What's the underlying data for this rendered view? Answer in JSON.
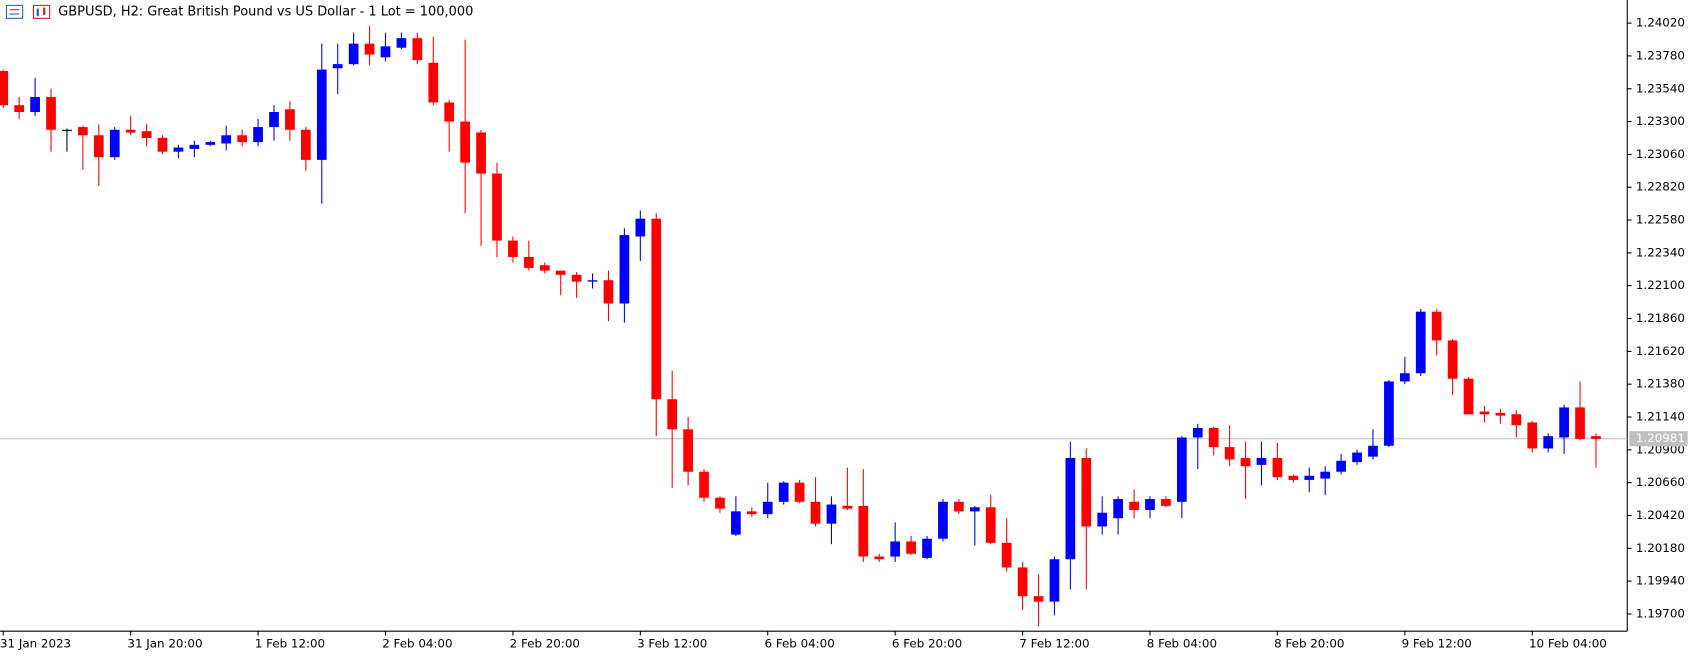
{
  "chart_data": {
    "type": "candlestick",
    "title": "GBPUSD, H2:  Great British Pound vs US Dollar - 1 Lot = 100,000",
    "categories": [
      "31 Jan 2023",
      null,
      null,
      null,
      null,
      null,
      null,
      null,
      "31 Jan 20:00",
      null,
      null,
      null,
      null,
      null,
      null,
      null,
      "1 Feb 12:00",
      null,
      null,
      null,
      null,
      null,
      null,
      null,
      "2 Feb 04:00",
      null,
      null,
      null,
      null,
      null,
      null,
      null,
      "2 Feb 20:00",
      null,
      null,
      null,
      null,
      null,
      null,
      null,
      "3 Feb 12:00",
      null,
      null,
      null,
      null,
      null,
      null,
      null,
      "6 Feb 04:00",
      null,
      null,
      null,
      null,
      null,
      null,
      null,
      "6 Feb 20:00",
      null,
      null,
      null,
      null,
      null,
      null,
      null,
      "7 Feb 12:00",
      null,
      null,
      null,
      null,
      null,
      null,
      null,
      "8 Feb 04:00",
      null,
      null,
      null,
      null,
      null,
      null,
      null,
      "8 Feb 20:00",
      null,
      null,
      null,
      null,
      null,
      null,
      null,
      "9 Feb 12:00",
      null,
      null,
      null,
      null,
      null,
      null,
      null,
      "10 Feb 04:00",
      null,
      null,
      null,
      null
    ],
    "open": [
      1.2367,
      1.2342,
      1.2337,
      1.2348,
      1.2324,
      1.2326,
      1.232,
      1.2304,
      1.2324,
      1.2323,
      1.2318,
      1.2308,
      1.231,
      1.2313,
      1.2314,
      1.232,
      1.2315,
      1.2326,
      1.2339,
      1.2324,
      1.2302,
      1.2369,
      1.2372,
      1.2387,
      1.2377,
      1.2384,
      1.2391,
      1.2373,
      1.2344,
      1.233,
      1.2322,
      1.2292,
      1.2243,
      1.2231,
      1.2225,
      1.2221,
      1.2218,
      1.2213,
      1.2214,
      1.2197,
      1.2246,
      1.2259,
      1.2127,
      1.2105,
      1.2074,
      1.2055,
      1.2028,
      1.2045,
      1.2043,
      1.2052,
      1.2066,
      1.2052,
      1.2036,
      1.2049,
      1.2049,
      1.2012,
      1.2012,
      1.2023,
      1.2011,
      1.2025,
      1.2052,
      1.2045,
      1.2048,
      1.2022,
      1.2004,
      1.1983,
      1.1979,
      1.201,
      1.2084,
      1.2034,
      1.204,
      1.2052,
      1.2046,
      1.2054,
      1.2052,
      1.2099,
      1.2106,
      1.2092,
      1.2084,
      1.2079,
      1.2084,
      1.2071,
      1.2068,
      1.2069,
      1.2074,
      1.2081,
      1.2085,
      1.2093,
      1.214,
      1.2146,
      1.2191,
      1.217,
      1.2142,
      1.2118,
      1.2117,
      1.2116,
      1.211,
      1.2091,
      1.2099,
      1.2121,
      1.21
    ],
    "high": [
      1.2368,
      1.2348,
      1.2362,
      1.2354,
      1.2325,
      1.2327,
      1.2328,
      1.2326,
      1.2334,
      1.2328,
      1.232,
      1.2313,
      1.2316,
      1.2316,
      1.2327,
      1.2324,
      1.2332,
      1.2342,
      1.2345,
      1.2326,
      1.2387,
      1.2387,
      1.2395,
      1.24,
      1.2395,
      1.2395,
      1.2395,
      1.2392,
      1.2346,
      1.239,
      1.2324,
      1.23,
      1.2246,
      1.2243,
      1.2227,
      1.2221,
      1.222,
      1.2219,
      1.2221,
      1.2252,
      1.2265,
      1.2263,
      1.2148,
      1.2114,
      1.2076,
      1.2056,
      1.2056,
      1.2048,
      1.2066,
      1.2067,
      1.2068,
      1.207,
      1.2056,
      1.2077,
      1.2076,
      1.2014,
      1.2037,
      1.2027,
      1.2027,
      1.2054,
      1.2054,
      1.2049,
      1.2057,
      1.204,
      1.2008,
      1.1999,
      1.2012,
      1.2096,
      1.2091,
      1.2056,
      1.2056,
      1.2061,
      1.2056,
      1.2056,
      1.21,
      1.2109,
      1.2107,
      1.2108,
      1.2096,
      1.2096,
      1.2095,
      1.2072,
      1.2077,
      1.2078,
      1.2087,
      1.209,
      1.2105,
      1.2141,
      1.2158,
      1.2193,
      1.2193,
      1.2171,
      1.2143,
      1.2122,
      1.212,
      1.2119,
      1.2111,
      1.2102,
      1.2123,
      1.214,
      1.2102
    ],
    "low": [
      1.234,
      1.2332,
      1.2334,
      1.2308,
      1.2308,
      1.2295,
      1.2283,
      1.2302,
      1.232,
      1.2312,
      1.2306,
      1.2303,
      1.2304,
      1.2312,
      1.2309,
      1.2312,
      1.2312,
      1.2316,
      1.2316,
      1.2294,
      1.227,
      1.235,
      1.2371,
      1.2371,
      1.2374,
      1.2383,
      1.2372,
      1.2342,
      1.2308,
      1.2263,
      1.2239,
      1.2231,
      1.2227,
      1.2221,
      1.2219,
      1.2203,
      1.2201,
      1.2208,
      1.2184,
      1.2183,
      1.2228,
      1.21,
      1.2062,
      1.2064,
      1.2052,
      1.2044,
      1.2027,
      1.2041,
      1.204,
      1.205,
      1.2051,
      1.2034,
      1.2021,
      1.2046,
      1.2008,
      1.2008,
      1.2008,
      1.2013,
      1.201,
      1.2023,
      1.2043,
      1.202,
      1.2021,
      1.2001,
      1.1973,
      1.1961,
      1.1969,
      1.1988,
      1.1988,
      1.2028,
      1.2028,
      1.204,
      1.204,
      1.2048,
      1.204,
      1.2076,
      1.2086,
      1.2078,
      1.2054,
      1.2064,
      1.2068,
      1.2066,
      1.2059,
      1.2057,
      1.2072,
      1.2079,
      1.2083,
      1.2092,
      1.2138,
      1.2144,
      1.2159,
      1.213,
      1.2116,
      1.211,
      1.2109,
      1.2099,
      1.2088,
      1.2088,
      1.2087,
      1.2097,
      1.2077
    ],
    "close": [
      1.2342,
      1.2337,
      1.2348,
      1.2324,
      1.2324,
      1.232,
      1.2304,
      1.2324,
      1.2322,
      1.2318,
      1.2308,
      1.2311,
      1.2313,
      1.2315,
      1.232,
      1.2315,
      1.2326,
      1.2337,
      1.2324,
      1.2302,
      1.2368,
      1.2372,
      1.2387,
      1.2379,
      1.2385,
      1.2391,
      1.2375,
      1.2344,
      1.233,
      1.23,
      1.2292,
      1.2243,
      1.2231,
      1.2223,
      1.2221,
      1.2218,
      1.2213,
      1.2214,
      1.2197,
      1.2247,
      1.2259,
      1.2127,
      1.2105,
      1.2074,
      1.2055,
      1.2047,
      1.2045,
      1.2043,
      1.2052,
      1.2066,
      1.2052,
      1.2036,
      1.205,
      1.2047,
      1.2012,
      1.201,
      1.2023,
      1.2014,
      1.2025,
      1.2052,
      1.2045,
      1.2048,
      1.2022,
      1.2004,
      1.1983,
      1.1979,
      1.201,
      1.2084,
      1.2034,
      1.2044,
      1.2054,
      1.2046,
      1.2054,
      1.2049,
      1.2099,
      1.2106,
      1.2092,
      1.2083,
      1.2078,
      1.2084,
      1.207,
      1.2068,
      1.2071,
      1.2074,
      1.2082,
      1.2088,
      1.2093,
      1.214,
      1.2146,
      1.2191,
      1.217,
      1.2142,
      1.2116,
      1.2116,
      1.2115,
      1.2108,
      1.2091,
      1.21,
      1.2121,
      1.2098,
      1.2098
    ],
    "up_color": "#0000ff",
    "down_color": "#ff0000",
    "current_price": 1.20981,
    "ylim": [
      1.19574,
      1.24189
    ],
    "yticks": [
      {
        "value": 1.2402,
        "label": "1.24020"
      },
      {
        "value": 1.2378,
        "label": "1.23780"
      },
      {
        "value": 1.2354,
        "label": "1.23540"
      },
      {
        "value": 1.233,
        "label": "1.23300"
      },
      {
        "value": 1.2306,
        "label": "1.23060"
      },
      {
        "value": 1.2282,
        "label": "1.22820"
      },
      {
        "value": 1.2258,
        "label": "1.22580"
      },
      {
        "value": 1.2234,
        "label": "1.22340"
      },
      {
        "value": 1.221,
        "label": "1.22100"
      },
      {
        "value": 1.2186,
        "label": "1.21860"
      },
      {
        "value": 1.2162,
        "label": "1.21620"
      },
      {
        "value": 1.2138,
        "label": "1.21380"
      },
      {
        "value": 1.2114,
        "label": "1.21140"
      },
      {
        "value": 1.209,
        "label": "1.20900"
      },
      {
        "value": 1.2066,
        "label": "1.20660"
      },
      {
        "value": 1.2042,
        "label": "1.20420"
      },
      {
        "value": 1.2018,
        "label": "1.20180"
      },
      {
        "value": 1.1994,
        "label": "1.19940"
      },
      {
        "value": 1.197,
        "label": "1.19700"
      }
    ]
  }
}
